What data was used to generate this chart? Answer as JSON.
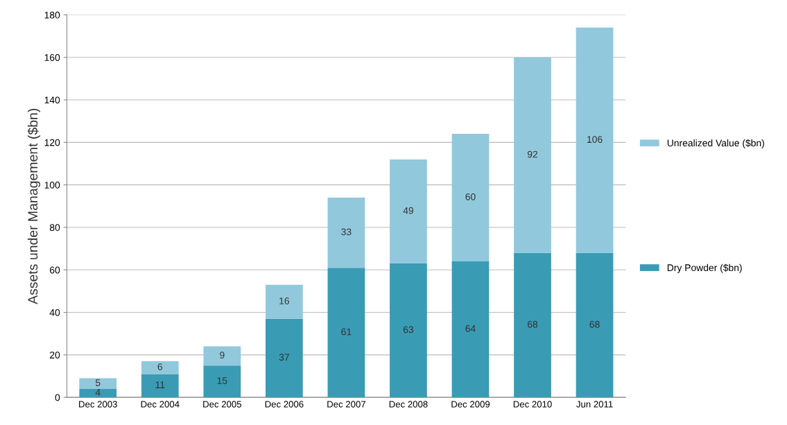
{
  "chart_data": {
    "type": "bar",
    "stacked": true,
    "ylabel": "Assets under Management ($bn)",
    "categories": [
      "Dec 2003",
      "Dec 2004",
      "Dec 2005",
      "Dec 2006",
      "Dec 2007",
      "Dec 2008",
      "Dec 2009",
      "Dec 2010",
      "Jun 2011"
    ],
    "series": [
      {
        "name": "Dry Powder ($bn)",
        "color": "#3a9bb5",
        "values": [
          4,
          11,
          15,
          37,
          61,
          63,
          64,
          68,
          68
        ]
      },
      {
        "name": "Unrealized Value ($bn)",
        "color": "#92c8dc",
        "values": [
          5,
          6,
          9,
          16,
          33,
          49,
          60,
          92,
          106
        ]
      }
    ],
    "ylim": [
      0,
      180
    ],
    "yticks": [
      0,
      20,
      40,
      60,
      80,
      100,
      120,
      140,
      160,
      180
    ],
    "grid": "y",
    "legend": "right",
    "data_labels": true
  }
}
